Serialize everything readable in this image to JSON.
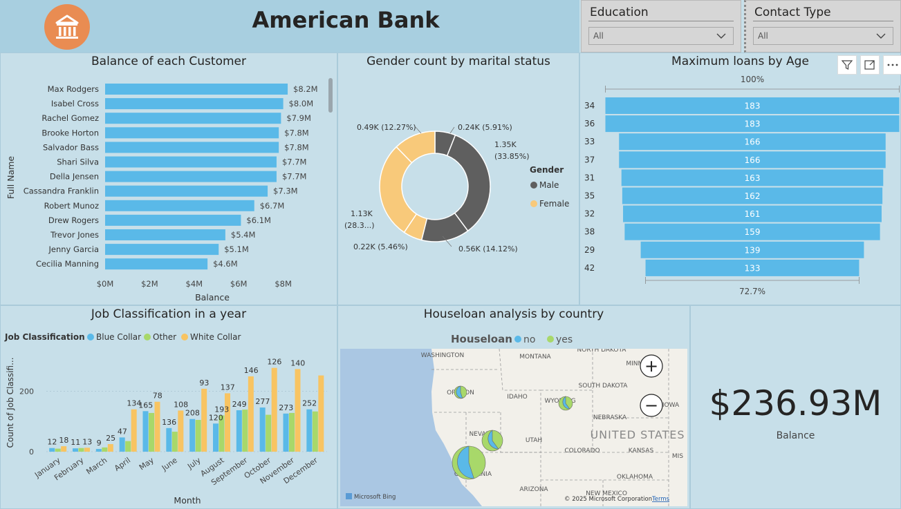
{
  "header": {
    "title": "American Bank",
    "logo_icon": "bank-icon"
  },
  "slicers": [
    {
      "label": "Education",
      "value": "All"
    },
    {
      "label": "Contact Type",
      "value": "All"
    }
  ],
  "balance_chart": {
    "title": "Balance of each Customer",
    "ylabel": "Full Name",
    "xlabel": "Balance",
    "ticks": [
      "$0M",
      "$2M",
      "$4M",
      "$6M",
      "$8M"
    ]
  },
  "gender_chart": {
    "title": "Gender count by marital status",
    "legend_title": "Gender",
    "labels": {
      "s1": "0.24K (5.91%)",
      "s2a": "1.35K",
      "s2b": "(33.85%)",
      "s3": "0.56K (14.12%)",
      "s4": "0.22K (5.46%)",
      "s5a": "1.13K",
      "s5b": "(28.3...)",
      "s6": "0.49K (12.27%)"
    }
  },
  "age_chart": {
    "title": "Maximum loans by Age",
    "top_pct": "100%",
    "bottom_pct": "72.7%"
  },
  "job_chart": {
    "title": "Job Classification in a year",
    "legend_title": "Job Classification",
    "ylabel": "Count of Job Classifi...",
    "xlabel": "Month",
    "yticks": [
      "0",
      "200"
    ]
  },
  "map": {
    "title": "Houseloan analysis by country",
    "legend_title": "Houseloan",
    "states": [
      "WASHINGTON",
      "MONTANA",
      "NORTH DAKOTA",
      "MINNESOTA",
      "SOUTH DAKOTA",
      "OREGON",
      "IDAHO",
      "WYOMING",
      "IOWA",
      "NEBRASKA",
      "NEVADA",
      "UTAH",
      "COLORADO",
      "KANSAS",
      "MIS",
      "CALIFORNIA",
      "ARIZONA",
      "NEW MEXICO",
      "OKLAHOMA"
    ],
    "country": "UNITED STATES",
    "bing": "Microsoft Bing",
    "copyright": "© 2025 Microsoft Corporation",
    "terms": "Terms",
    "zoom_in": "+",
    "zoom_out": "−"
  },
  "kpi": {
    "value": "$236.93M",
    "label": "Balance"
  },
  "colors": {
    "male": "#5f5f5f",
    "female": "#f8c97a",
    "blue_collar": "#5ab9e8",
    "other": "#a8d86a",
    "white_collar": "#f8c462",
    "bar": "#5ab9e8",
    "logo": "#e98c52"
  },
  "chart_data": [
    {
      "type": "bar",
      "orientation": "horizontal",
      "title": "Balance of each Customer",
      "xlabel": "Balance",
      "ylabel": "Full Name",
      "xlim": [
        0,
        8.9
      ],
      "unit": "$M",
      "categories": [
        "Max Rodgers",
        "Isabel Cross",
        "Rachel Gomez",
        "Brooke Horton",
        "Salvador Bass",
        "Shari Silva",
        "Della Jensen",
        "Cassandra Franklin",
        "Robert Munoz",
        "Drew Rogers",
        "Trevor Jones",
        "Jenny Garcia",
        "Cecilia Manning"
      ],
      "values": [
        8.2,
        8.0,
        7.9,
        7.8,
        7.8,
        7.7,
        7.7,
        7.3,
        6.7,
        6.1,
        5.4,
        5.1,
        4.6
      ],
      "data_labels": [
        "$8.2M",
        "$8.0M",
        "$7.9M",
        "$7.8M",
        "$7.8M",
        "$7.7M",
        "$7.7M",
        "$7.3M",
        "$6.7M",
        "$6.1M",
        "$5.4M",
        "$5.1M",
        "$4.6M"
      ]
    },
    {
      "type": "pie",
      "variant": "donut",
      "title": "Gender count by marital status",
      "series": [
        {
          "name": "Male",
          "values": [
            0.24,
            1.35,
            0.56
          ]
        },
        {
          "name": "Female",
          "values": [
            0.22,
            1.13,
            0.49
          ]
        }
      ],
      "slice_order": [
        "Male",
        "Male",
        "Male",
        "Female",
        "Female",
        "Female"
      ],
      "slices": [
        0.24,
        1.35,
        0.56,
        0.22,
        1.13,
        0.49
      ],
      "percents": [
        5.91,
        33.85,
        14.12,
        5.46,
        28.3,
        12.27
      ]
    },
    {
      "type": "bar",
      "variant": "funnel",
      "title": "Maximum loans by Age",
      "categories": [
        "34",
        "36",
        "33",
        "37",
        "31",
        "35",
        "32",
        "38",
        "29",
        "42"
      ],
      "values": [
        183,
        183,
        166,
        166,
        163,
        162,
        161,
        159,
        139,
        133
      ]
    },
    {
      "type": "bar",
      "variant": "clustered",
      "title": "Job Classification in a year",
      "xlabel": "Month",
      "ylabel": "Count of Job Classifi...",
      "ylim": [
        0,
        290
      ],
      "categories": [
        "January",
        "February",
        "March",
        "April",
        "May",
        "June",
        "July",
        "August",
        "September",
        "October",
        "November",
        "December"
      ],
      "series": [
        {
          "name": "Blue Collar",
          "values": [
            12,
            11,
            9,
            47,
            134,
            78,
            108,
            93,
            137,
            146,
            126,
            140
          ]
        },
        {
          "name": "Other",
          "values": [
            10,
            12,
            14,
            35,
            128,
            66,
            105,
            120,
            139,
            122,
            128,
            133
          ]
        },
        {
          "name": "White Collar",
          "values": [
            18,
            13,
            25,
            140,
            165,
            136,
            208,
            193,
            249,
            277,
            273,
            252
          ]
        }
      ],
      "data_labels": [
        "12",
        "18",
        "11",
        "13",
        "9",
        "25",
        "47",
        "134",
        "165",
        "78",
        "136",
        "108",
        "208",
        "93",
        "120",
        "193",
        "137",
        "249",
        "146",
        "277",
        "126",
        "273",
        "140",
        "252"
      ]
    },
    {
      "type": "scatter",
      "variant": "map-pies",
      "title": "Houseloan analysis by country",
      "series": [
        {
          "name": "no"
        },
        {
          "name": "yes"
        }
      ],
      "locations": [
        {
          "state": "Oregon",
          "no": 0.45,
          "yes": 0.55
        },
        {
          "state": "Wyoming",
          "no": 0.4,
          "yes": 0.6
        },
        {
          "state": "Nevada",
          "no": 0.4,
          "yes": 0.6
        },
        {
          "state": "California",
          "no": 0.45,
          "yes": 0.55
        }
      ]
    }
  ]
}
